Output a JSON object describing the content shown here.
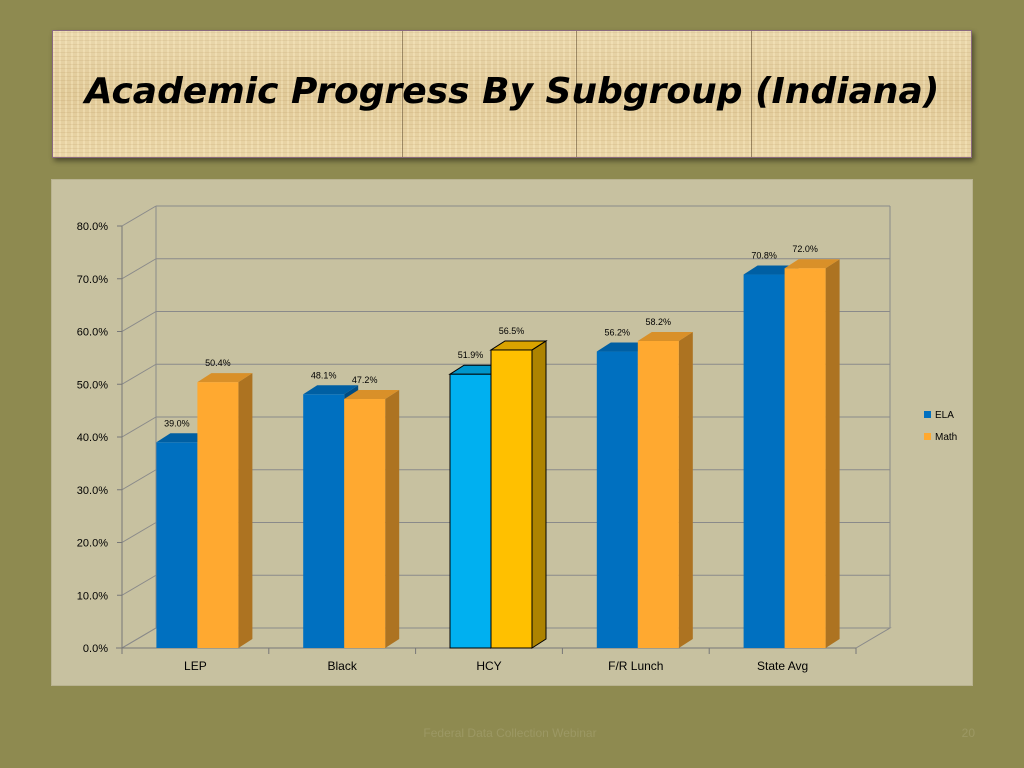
{
  "slide": {
    "title": "Academic Progress By Subgroup (Indiana)",
    "footer": "Federal Data Collection Webinar",
    "page_number": "20"
  },
  "chart_data": {
    "type": "bar",
    "title": "",
    "xlabel": "",
    "ylabel": "",
    "categories": [
      "LEP",
      "Black",
      "HCY",
      "F/R Lunch",
      "State Avg"
    ],
    "series": [
      {
        "name": "ELA",
        "values": [
          39.0,
          48.1,
          51.9,
          56.2,
          70.8
        ],
        "color": "#0070c0",
        "highlight_color": "#00b0f0"
      },
      {
        "name": "Math",
        "values": [
          50.4,
          47.2,
          56.5,
          58.2,
          72.0
        ],
        "color": "#ffa930",
        "highlight_color": "#ffc000"
      }
    ],
    "data_labels": {
      "ELA": [
        "39.0%",
        "48.1%",
        "51.9%",
        "56.2%",
        "70.8%"
      ],
      "Math": [
        "50.4%",
        "47.2%",
        "56.5%",
        "58.2%",
        "72.0%"
      ]
    },
    "highlighted_category": "HCY",
    "ylim": [
      0,
      80
    ],
    "y_ticks": [
      "0.0%",
      "10.0%",
      "20.0%",
      "30.0%",
      "40.0%",
      "50.0%",
      "60.0%",
      "70.0%",
      "80.0%"
    ],
    "grid": true,
    "legend_position": "right",
    "colors": {
      "background": "#c7c1a0",
      "gridline": "#8a8a8a"
    }
  }
}
